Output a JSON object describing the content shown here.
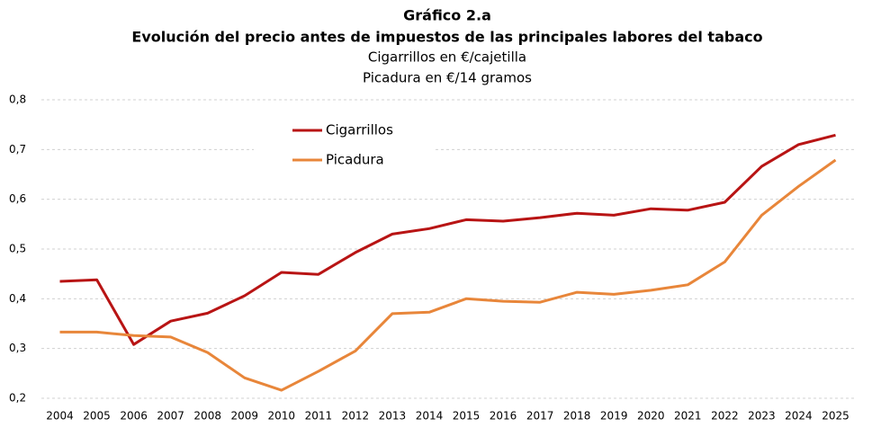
{
  "chart_data": {
    "type": "line",
    "title": "Gráfico 2.a",
    "subtitle": "Evolución del precio antes de impuestos de las principales labores del tabaco",
    "notes": [
      "Cigarrillos en €/cajetilla",
      "Picadura en €/14 gramos"
    ],
    "categories": [
      "2004",
      "2005",
      "2006",
      "2007",
      "2008",
      "2009",
      "2010",
      "2011",
      "2012",
      "2013",
      "2014",
      "2015",
      "2016",
      "2017",
      "2018",
      "2019",
      "2020",
      "2021",
      "2022",
      "2023",
      "2024",
      "2025"
    ],
    "series": [
      {
        "name": "Cigarrillos",
        "color": "#b81414",
        "values": [
          0.435,
          0.438,
          0.308,
          0.355,
          0.371,
          0.406,
          0.453,
          0.449,
          0.493,
          0.53,
          0.541,
          0.559,
          0.556,
          0.563,
          0.572,
          0.568,
          0.581,
          0.578,
          0.594,
          0.666,
          0.71,
          0.729
        ]
      },
      {
        "name": "Picadura",
        "color": "#e8863a",
        "values": [
          0.333,
          0.333,
          0.326,
          0.323,
          0.292,
          0.241,
          0.216,
          0.254,
          0.295,
          0.37,
          0.373,
          0.4,
          0.395,
          0.393,
          0.413,
          0.409,
          0.417,
          0.428,
          0.474,
          0.568,
          0.626,
          0.679
        ]
      }
    ],
    "ylim": [
      0.2,
      0.8
    ],
    "yticks": [
      {
        "value": 0.2,
        "label": "0,2"
      },
      {
        "value": 0.3,
        "label": "0,3"
      },
      {
        "value": 0.4,
        "label": "0,4"
      },
      {
        "value": 0.5,
        "label": "0,5"
      },
      {
        "value": 0.6,
        "label": "0,6"
      },
      {
        "value": 0.7,
        "label": "0,7"
      },
      {
        "value": 0.8,
        "label": "0,8"
      }
    ],
    "grid": true
  }
}
